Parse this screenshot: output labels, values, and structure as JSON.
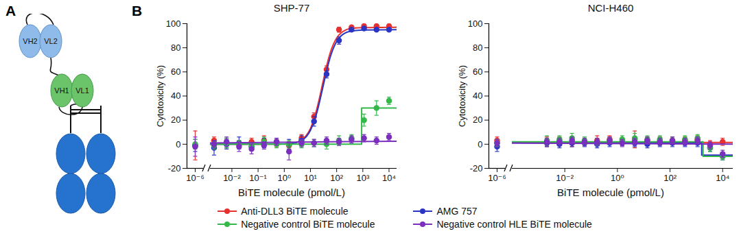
{
  "panels": [
    "A",
    "B"
  ],
  "diagram": {
    "labels": [
      "VH2",
      "VL2",
      "VH1",
      "VL1"
    ]
  },
  "chart_data": [
    {
      "type": "scatter",
      "title": "SHP-77",
      "x_label": "BiTE molecule (pmol/L)",
      "y_label": "Cytotoxicity (%)",
      "log": "x",
      "grid": false,
      "legend": "bottom",
      "x": [
        1e-06,
        0.00209,
        0.00627,
        0.0188,
        0.0565,
        0.169,
        0.508,
        1.52,
        4.57,
        13.7,
        41.2,
        123,
        370,
        1111,
        3333,
        10000
      ],
      "xlim": [
        [
          5e-07,
          2e-06
        ],
        [
          0.0015,
          20000
        ]
      ],
      "xticks": [
        {
          "value": 1e-06,
          "label": "10⁻⁶"
        },
        {
          "value": 0.01,
          "label": "10⁻²"
        },
        {
          "value": 0.1,
          "label": "10⁻¹"
        },
        {
          "value": 1,
          "label": "10⁰"
        },
        {
          "value": 10,
          "label": "10¹"
        },
        {
          "value": 100,
          "label": "10²"
        },
        {
          "value": 1000,
          "label": "10³"
        },
        {
          "value": 10000,
          "label": "10⁴"
        }
      ],
      "ylim": [
        -20,
        100
      ],
      "yticks": [
        -20,
        0,
        20,
        40,
        60,
        80,
        100
      ],
      "series": [
        {
          "name": "Anti-DLL3 BiTE molecule",
          "color": "#e8312f",
          "marker": "circle",
          "values": [
            -1,
            3,
            1,
            0,
            2,
            3,
            1,
            -1,
            5,
            23,
            62,
            95,
            97,
            98,
            98,
            98
          ],
          "errors": [
            12,
            3,
            4,
            3,
            3,
            4,
            3,
            3,
            3,
            3,
            3,
            2,
            1,
            1,
            1,
            1
          ],
          "fit": {
            "x": [
              0.0015,
              0.01,
              0.1,
              1,
              3,
              5,
              7,
              10,
              15,
              20,
              30,
              40,
              60,
              100,
              150,
              200,
              300,
              1000,
              20000
            ],
            "values": [
              0,
              0,
              0,
              0.2,
              1.7,
              4.2,
              7.4,
              13.1,
              23.8,
              34.3,
              51.5,
              63.6,
              77.4,
              88.1,
              92.5,
              94.3,
              95.7,
              96.7,
              97
            ]
          }
        },
        {
          "name": "AMG 757",
          "color": "#2a35c4",
          "marker": "circle",
          "values": [
            -1,
            -3,
            0,
            1,
            -2,
            1,
            2,
            0,
            3,
            19,
            58,
            86,
            95,
            96,
            95,
            95
          ],
          "errors": [
            5,
            6,
            4,
            5,
            3,
            4,
            3,
            4,
            4,
            4,
            3,
            3,
            1,
            1,
            1,
            1
          ],
          "fit": {
            "x": [
              0.0015,
              0.01,
              0.1,
              1,
              3,
              5,
              7,
              10,
              15,
              20,
              30,
              40,
              60,
              100,
              150,
              200,
              300,
              1000,
              20000
            ],
            "values": [
              0,
              0,
              0,
              0.2,
              1.5,
              3.6,
              6.4,
              11.6,
              21.2,
              30.9,
              47.5,
              59.5,
              73.8,
              85.2,
              90,
              92,
              93.5,
              94.7,
              95
            ]
          }
        },
        {
          "name": "Negative control BiTE molecule",
          "color": "#33b84a",
          "marker": "circle",
          "values": [
            0,
            -1,
            1,
            0,
            -2,
            2,
            0,
            0,
            0,
            1,
            0,
            3,
            5,
            20,
            30,
            36
          ],
          "errors": [
            4,
            3,
            4,
            3,
            3,
            4,
            3,
            3,
            3,
            3,
            4,
            4,
            3,
            5,
            6,
            3
          ],
          "fit": {
            "x": [
              0.0015,
              900,
              900,
              20000
            ],
            "values": [
              0,
              0,
              30,
              30
            ]
          }
        },
        {
          "name": "Negative control HLE BiTE molecule",
          "color": "#7b2fbe",
          "marker": "circle",
          "values": [
            -2,
            0,
            2,
            -2,
            -4,
            -1,
            2,
            -6,
            1,
            1,
            3,
            2,
            4,
            5,
            3,
            6
          ],
          "errors": [
            8,
            3,
            4,
            4,
            4,
            3,
            3,
            7,
            3,
            3,
            3,
            3,
            3,
            3,
            3,
            3
          ],
          "fit": {
            "x": [
              0.0015,
              20000
            ],
            "values": [
              1,
              2.5
            ]
          }
        }
      ]
    },
    {
      "type": "scatter",
      "title": "NCI-H460",
      "x_label": "BiTE molecule (pmol/L)",
      "y_label": "Cytotoxicity (%)",
      "log": "x",
      "grid": false,
      "x": [
        1e-06,
        0.00209,
        0.00627,
        0.0188,
        0.0565,
        0.169,
        0.508,
        1.52,
        4.57,
        13.7,
        41.2,
        123,
        370,
        1111,
        3333,
        10000
      ],
      "xlim": [
        [
          5e-07,
          2e-06
        ],
        [
          0.0001,
          25000
        ]
      ],
      "xticks": [
        {
          "value": 1e-06,
          "label": "10⁻⁶"
        },
        {
          "value": 0.01,
          "label": "10⁻²"
        },
        {
          "value": 1,
          "label": "10⁰"
        },
        {
          "value": 100,
          "label": "10²"
        },
        {
          "value": 10000,
          "label": "10⁴"
        }
      ],
      "ylim": [
        -20,
        100
      ],
      "yticks": [
        -20,
        0,
        20,
        40,
        60,
        80,
        100
      ],
      "series": [
        {
          "name": "Anti-DLL3 BiTE molecule",
          "color": "#e8312f",
          "marker": "circle",
          "values": [
            3,
            2,
            3,
            1,
            2,
            3,
            4,
            2,
            4,
            3,
            3,
            3,
            3,
            4,
            0,
            2
          ],
          "errors": [
            3,
            4,
            3,
            3,
            3,
            4,
            3,
            3,
            7,
            3,
            3,
            3,
            3,
            3,
            3,
            3
          ],
          "fit": {
            "x": [
              0.0001,
              25000
            ],
            "values": [
              1.5,
              1.5
            ]
          }
        },
        {
          "name": "AMG 757",
          "color": "#2a35c4",
          "marker": "circle",
          "values": [
            -2,
            1,
            0,
            1,
            1,
            0,
            1,
            2,
            1,
            0,
            1,
            1,
            1,
            1,
            -3,
            -10
          ],
          "errors": [
            4,
            3,
            3,
            3,
            3,
            3,
            3,
            3,
            3,
            3,
            3,
            3,
            3,
            3,
            3,
            3
          ],
          "fit": {
            "x": [
              0.0001,
              1600,
              1600,
              25000
            ],
            "values": [
              1,
              1,
              -9,
              -9
            ]
          }
        },
        {
          "name": "Negative control BiTE molecule",
          "color": "#33b84a",
          "marker": "circle",
          "values": [
            1,
            3,
            4,
            5,
            3,
            2,
            3,
            4,
            5,
            4,
            4,
            3,
            4,
            5,
            -3,
            -10
          ],
          "errors": [
            3,
            4,
            3,
            4,
            3,
            3,
            3,
            3,
            4,
            3,
            3,
            3,
            3,
            3,
            3,
            3
          ],
          "fit": {
            "x": [
              0.0001,
              1800,
              1800,
              25000
            ],
            "values": [
              2,
              2,
              -10,
              -10
            ]
          }
        },
        {
          "name": "Negative control HLE BiTE molecule",
          "color": "#7b2fbe",
          "marker": "circle",
          "values": [
            1,
            2,
            2,
            3,
            2,
            2,
            3,
            1,
            2,
            3,
            2,
            3,
            2,
            3,
            -1,
            -8
          ],
          "errors": [
            3,
            3,
            3,
            3,
            3,
            3,
            3,
            3,
            3,
            3,
            3,
            3,
            3,
            3,
            3,
            3
          ],
          "fit": {
            "x": [
              0.0001,
              25000
            ],
            "values": [
              1,
              0
            ]
          }
        }
      ]
    }
  ]
}
